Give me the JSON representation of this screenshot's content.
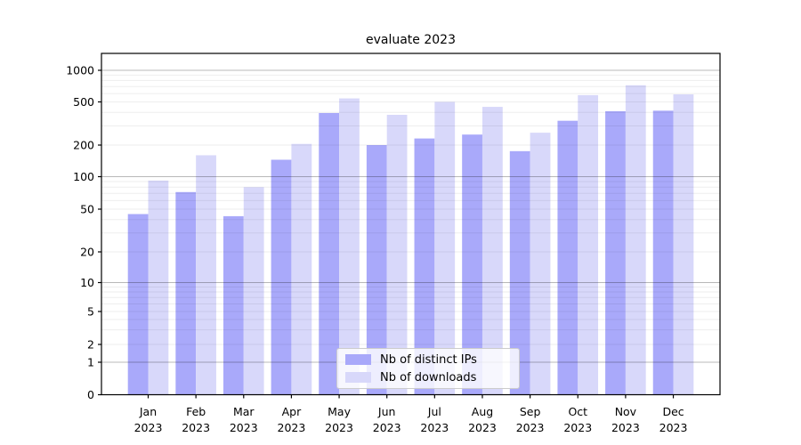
{
  "chart_data": {
    "type": "bar",
    "title": "evaluate 2023",
    "categories": [
      "Jan",
      "Feb",
      "Mar",
      "Apr",
      "May",
      "Jun",
      "Jul",
      "Aug",
      "Sep",
      "Oct",
      "Nov",
      "Dec"
    ],
    "category_year": "2023",
    "series": [
      {
        "name": "Nb of distinct IPs",
        "color": "#a9a9fa",
        "values": [
          45,
          72,
          43,
          145,
          395,
          200,
          230,
          250,
          175,
          335,
          410,
          415
        ]
      },
      {
        "name": "Nb of downloads",
        "color": "#d8d8fa",
        "values": [
          92,
          160,
          80,
          205,
          540,
          380,
          500,
          450,
          260,
          580,
          720,
          590
        ]
      }
    ],
    "y_ticks": [
      0,
      1,
      2,
      5,
      10,
      20,
      50,
      100,
      200,
      500,
      1000
    ],
    "y_scale": "symlog",
    "ylim": [
      0,
      1400
    ],
    "grid": true,
    "legend_position": "lower center",
    "axis_color": "#000000",
    "major_grid_color": "#b8b8b8",
    "minor_grid_color": "#ebebeb"
  }
}
